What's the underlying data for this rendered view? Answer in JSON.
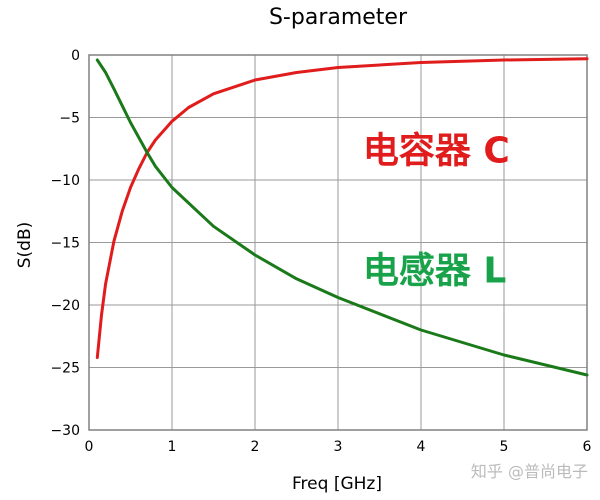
{
  "chart_data": {
    "type": "line",
    "title": "S-parameter",
    "xlabel": "Freq [GHz]",
    "ylabel": "S(dB)",
    "xlim": [
      0,
      6
    ],
    "ylim": [
      -30,
      0
    ],
    "grid": true,
    "xticks": [
      0,
      1,
      2,
      3,
      4,
      5,
      6
    ],
    "xtick_labels": [
      "0",
      "1",
      "2",
      "3",
      "4",
      "5",
      "6"
    ],
    "yticks": [
      0,
      -5,
      -10,
      -15,
      -20,
      -25,
      -30
    ],
    "ytick_labels": [
      "0",
      "−5",
      "−10",
      "−15",
      "−20",
      "−25",
      "−30"
    ],
    "series": [
      {
        "color": "#e01c1c",
        "x": [
          0.1,
          0.15,
          0.2,
          0.3,
          0.4,
          0.5,
          0.6,
          0.7,
          0.8,
          1.0,
          1.2,
          1.5,
          2.0,
          2.5,
          3.0,
          4.0,
          5.0,
          6.0
        ],
        "y": [
          -24.2,
          -20.8,
          -18.3,
          -14.9,
          -12.5,
          -10.6,
          -9.1,
          -7.8,
          -6.8,
          -5.3,
          -4.2,
          -3.1,
          -2.0,
          -1.4,
          -1.0,
          -0.6,
          -0.4,
          -0.3
        ]
      },
      {
        "color": "#1a7a1a",
        "x": [
          0.1,
          0.2,
          0.3,
          0.5,
          0.7,
          0.8,
          1.0,
          1.5,
          2.0,
          2.5,
          3.0,
          4.0,
          5.0,
          6.0
        ],
        "y": [
          -0.4,
          -1.4,
          -2.7,
          -5.4,
          -7.8,
          -8.9,
          -10.6,
          -13.7,
          -16.0,
          -17.9,
          -19.4,
          -22.0,
          -24.0,
          -25.6
        ]
      }
    ],
    "annotations": [
      {
        "text": "电容器 C",
        "color": "#e01c1c",
        "x": 3.3,
        "y": -8.6
      },
      {
        "text": "电感器 L",
        "color": "#18a34a",
        "x": 3.3,
        "y": -18.2
      }
    ]
  },
  "watermark": "知乎 @普尚电子"
}
